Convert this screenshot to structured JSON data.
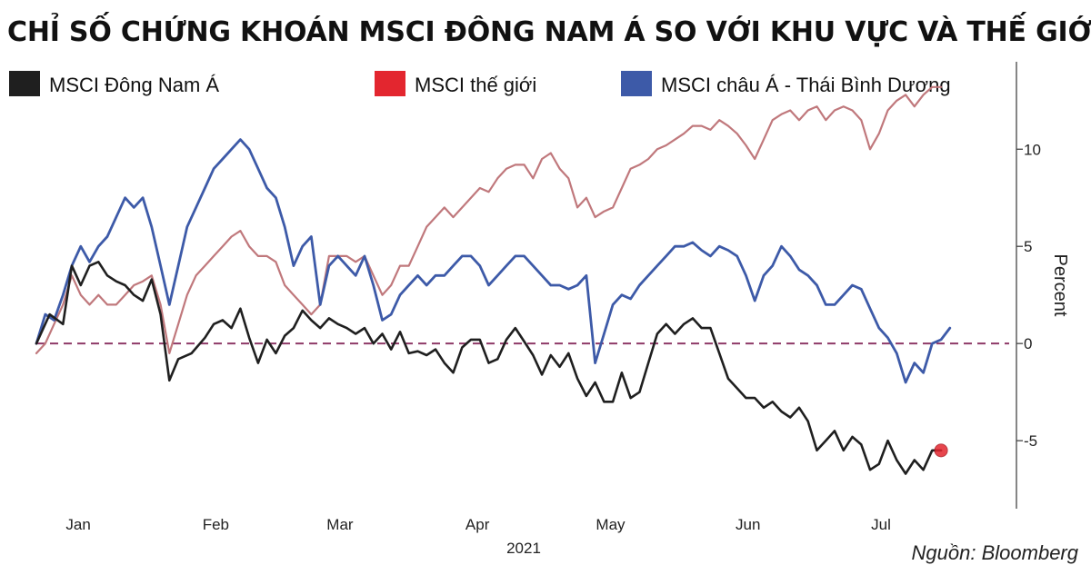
{
  "title": "CHỈ SỐ CHỨNG KHOÁN MSCI ĐÔNG NAM Á SO VỚI KHU VỰC VÀ THẾ GIỚI",
  "source": "Nguồn: Bloomberg",
  "colors": {
    "series_sea": "#1f1f1f",
    "series_world": "#c0787c",
    "series_apac": "#3d5aa8",
    "legend_world": "#e3262f",
    "zero_line": "#8e3a68",
    "end_marker": "#e3262f",
    "axis": "#444444"
  },
  "chart_data": {
    "type": "line",
    "title": "CHỈ SỐ CHỨNG KHOÁN MSCI ĐÔNG NAM Á SO VỚI KHU VỰC VÀ THẾ GIỚI",
    "xlabel": "2021",
    "ylabel": "Percent",
    "x_ticks": [
      "Jan",
      "Feb",
      "Mar",
      "Apr",
      "May",
      "Jun",
      "Jul"
    ],
    "x_tick_days": [
      7,
      38,
      66,
      97,
      127,
      158,
      188
    ],
    "xlim": [
      0,
      221
    ],
    "ylim": [
      -8.5,
      14.5
    ],
    "y_ticks": [
      10,
      5,
      0,
      -5
    ],
    "y_tick_labels": [
      "10",
      "5",
      "0",
      "-5"
    ],
    "reference_line": 0,
    "legend_position": "top",
    "series": [
      {
        "name": "MSCI Đông Nam Á",
        "points": [
          [
            0,
            0
          ],
          [
            3,
            1.5
          ],
          [
            6,
            1
          ],
          [
            8,
            4
          ],
          [
            10,
            3
          ],
          [
            12,
            4
          ],
          [
            14,
            4.2
          ],
          [
            16,
            3.5
          ],
          [
            18,
            3.2
          ],
          [
            20,
            3
          ],
          [
            22,
            2.5
          ],
          [
            24,
            2.2
          ],
          [
            26,
            3.3
          ],
          [
            28,
            1.5
          ],
          [
            30,
            -1.9
          ],
          [
            32,
            -0.8
          ],
          [
            35,
            -0.5
          ],
          [
            38,
            0.3
          ],
          [
            40,
            1
          ],
          [
            42,
            1.2
          ],
          [
            44,
            0.8
          ],
          [
            46,
            1.8
          ],
          [
            48,
            0.3
          ],
          [
            50,
            -1
          ],
          [
            52,
            0.2
          ],
          [
            54,
            -0.5
          ],
          [
            56,
            0.4
          ],
          [
            58,
            0.8
          ],
          [
            60,
            1.7
          ],
          [
            62,
            1.2
          ],
          [
            64,
            0.8
          ],
          [
            66,
            1.3
          ],
          [
            68,
            1
          ],
          [
            70,
            0.8
          ],
          [
            72,
            0.5
          ],
          [
            74,
            0.8
          ],
          [
            76,
            0
          ],
          [
            78,
            0.5
          ],
          [
            80,
            -0.3
          ],
          [
            82,
            0.6
          ],
          [
            84,
            -0.5
          ],
          [
            86,
            -0.4
          ],
          [
            88,
            -0.6
          ],
          [
            90,
            -0.3
          ],
          [
            92,
            -1
          ],
          [
            94,
            -1.5
          ],
          [
            96,
            -0.2
          ],
          [
            98,
            0.2
          ],
          [
            100,
            0.2
          ],
          [
            102,
            -1
          ],
          [
            104,
            -0.8
          ],
          [
            106,
            0.2
          ],
          [
            108,
            0.8
          ],
          [
            110,
            0.1
          ],
          [
            112,
            -0.6
          ],
          [
            114,
            -1.6
          ],
          [
            116,
            -0.6
          ],
          [
            118,
            -1.2
          ],
          [
            120,
            -0.5
          ],
          [
            122,
            -1.8
          ],
          [
            124,
            -2.7
          ],
          [
            126,
            -2
          ],
          [
            128,
            -3
          ],
          [
            130,
            -3
          ],
          [
            132,
            -1.5
          ],
          [
            134,
            -2.8
          ],
          [
            136,
            -2.5
          ],
          [
            138,
            -1
          ],
          [
            140,
            0.5
          ],
          [
            142,
            1
          ],
          [
            144,
            0.5
          ],
          [
            146,
            1
          ],
          [
            148,
            1.3
          ],
          [
            150,
            0.8
          ],
          [
            152,
            0.8
          ],
          [
            154,
            -0.5
          ],
          [
            156,
            -1.8
          ],
          [
            158,
            -2.3
          ],
          [
            160,
            -2.8
          ],
          [
            162,
            -2.8
          ],
          [
            164,
            -3.3
          ],
          [
            166,
            -3
          ],
          [
            168,
            -3.5
          ],
          [
            170,
            -3.8
          ],
          [
            172,
            -3.3
          ],
          [
            174,
            -4
          ],
          [
            176,
            -5.5
          ],
          [
            178,
            -5
          ],
          [
            180,
            -4.5
          ],
          [
            182,
            -5.5
          ],
          [
            184,
            -4.8
          ],
          [
            186,
            -5.2
          ],
          [
            188,
            -6.5
          ],
          [
            190,
            -6.2
          ],
          [
            192,
            -5
          ],
          [
            194,
            -6
          ],
          [
            196,
            -6.7
          ],
          [
            198,
            -6
          ],
          [
            200,
            -6.5
          ],
          [
            202,
            -5.5
          ],
          [
            204,
            -5.5
          ]
        ]
      },
      {
        "name": "MSCI thế giới",
        "points": [
          [
            0,
            -0.5
          ],
          [
            2,
            0
          ],
          [
            4,
            1
          ],
          [
            6,
            2
          ],
          [
            8,
            3.5
          ],
          [
            10,
            2.5
          ],
          [
            12,
            2
          ],
          [
            14,
            2.5
          ],
          [
            16,
            2
          ],
          [
            18,
            2
          ],
          [
            20,
            2.5
          ],
          [
            22,
            3
          ],
          [
            24,
            3.2
          ],
          [
            26,
            3.5
          ],
          [
            28,
            2
          ],
          [
            30,
            -0.5
          ],
          [
            32,
            1
          ],
          [
            34,
            2.5
          ],
          [
            36,
            3.5
          ],
          [
            38,
            4
          ],
          [
            40,
            4.5
          ],
          [
            42,
            5
          ],
          [
            44,
            5.5
          ],
          [
            46,
            5.8
          ],
          [
            48,
            5
          ],
          [
            50,
            4.5
          ],
          [
            52,
            4.5
          ],
          [
            54,
            4.2
          ],
          [
            56,
            3
          ],
          [
            58,
            2.5
          ],
          [
            60,
            2
          ],
          [
            62,
            1.5
          ],
          [
            64,
            2
          ],
          [
            66,
            4.5
          ],
          [
            68,
            4.5
          ],
          [
            70,
            4.5
          ],
          [
            72,
            4.2
          ],
          [
            74,
            4.5
          ],
          [
            76,
            3.5
          ],
          [
            78,
            2.5
          ],
          [
            80,
            3
          ],
          [
            82,
            4
          ],
          [
            84,
            4
          ],
          [
            86,
            5
          ],
          [
            88,
            6
          ],
          [
            90,
            6.5
          ],
          [
            92,
            7
          ],
          [
            94,
            6.5
          ],
          [
            96,
            7
          ],
          [
            98,
            7.5
          ],
          [
            100,
            8
          ],
          [
            102,
            7.8
          ],
          [
            104,
            8.5
          ],
          [
            106,
            9
          ],
          [
            108,
            9.2
          ],
          [
            110,
            9.2
          ],
          [
            112,
            8.5
          ],
          [
            114,
            9.5
          ],
          [
            116,
            9.8
          ],
          [
            118,
            9
          ],
          [
            120,
            8.5
          ],
          [
            122,
            7
          ],
          [
            124,
            7.5
          ],
          [
            126,
            6.5
          ],
          [
            128,
            6.8
          ],
          [
            130,
            7
          ],
          [
            132,
            8
          ],
          [
            134,
            9
          ],
          [
            136,
            9.2
          ],
          [
            138,
            9.5
          ],
          [
            140,
            10
          ],
          [
            142,
            10.2
          ],
          [
            144,
            10.5
          ],
          [
            146,
            10.8
          ],
          [
            148,
            11.2
          ],
          [
            150,
            11.2
          ],
          [
            152,
            11
          ],
          [
            154,
            11.5
          ],
          [
            156,
            11.2
          ],
          [
            158,
            10.8
          ],
          [
            160,
            10.2
          ],
          [
            162,
            9.5
          ],
          [
            164,
            10.5
          ],
          [
            166,
            11.5
          ],
          [
            168,
            11.8
          ],
          [
            170,
            12
          ],
          [
            172,
            11.5
          ],
          [
            174,
            12
          ],
          [
            176,
            12.2
          ],
          [
            178,
            11.5
          ],
          [
            180,
            12
          ],
          [
            182,
            12.2
          ],
          [
            184,
            12
          ],
          [
            186,
            11.5
          ],
          [
            188,
            10
          ],
          [
            190,
            10.8
          ],
          [
            192,
            12
          ],
          [
            194,
            12.5
          ],
          [
            196,
            12.8
          ],
          [
            198,
            12.2
          ],
          [
            200,
            12.8
          ],
          [
            202,
            13.2
          ],
          [
            204,
            13.2
          ]
        ]
      },
      {
        "name": "MSCI châu Á - Thái Bình Dương",
        "points": [
          [
            0,
            0
          ],
          [
            2,
            1.5
          ],
          [
            4,
            1.2
          ],
          [
            6,
            2.5
          ],
          [
            8,
            4
          ],
          [
            10,
            5
          ],
          [
            12,
            4.2
          ],
          [
            14,
            5
          ],
          [
            16,
            5.5
          ],
          [
            18,
            6.5
          ],
          [
            20,
            7.5
          ],
          [
            22,
            7
          ],
          [
            24,
            7.5
          ],
          [
            26,
            6
          ],
          [
            28,
            4
          ],
          [
            30,
            2
          ],
          [
            32,
            4
          ],
          [
            34,
            6
          ],
          [
            36,
            7
          ],
          [
            38,
            8
          ],
          [
            40,
            9
          ],
          [
            42,
            9.5
          ],
          [
            44,
            10
          ],
          [
            46,
            10.5
          ],
          [
            48,
            10
          ],
          [
            50,
            9
          ],
          [
            52,
            8
          ],
          [
            54,
            7.5
          ],
          [
            56,
            6
          ],
          [
            58,
            4
          ],
          [
            60,
            5
          ],
          [
            62,
            5.5
          ],
          [
            64,
            2
          ],
          [
            66,
            4
          ],
          [
            68,
            4.5
          ],
          [
            70,
            4
          ],
          [
            72,
            3.5
          ],
          [
            74,
            4.5
          ],
          [
            76,
            3
          ],
          [
            78,
            1.2
          ],
          [
            80,
            1.5
          ],
          [
            82,
            2.5
          ],
          [
            84,
            3
          ],
          [
            86,
            3.5
          ],
          [
            88,
            3
          ],
          [
            90,
            3.5
          ],
          [
            92,
            3.5
          ],
          [
            94,
            4
          ],
          [
            96,
            4.5
          ],
          [
            98,
            4.5
          ],
          [
            100,
            4
          ],
          [
            102,
            3
          ],
          [
            104,
            3.5
          ],
          [
            106,
            4
          ],
          [
            108,
            4.5
          ],
          [
            110,
            4.5
          ],
          [
            112,
            4
          ],
          [
            114,
            3.5
          ],
          [
            116,
            3
          ],
          [
            118,
            3
          ],
          [
            120,
            2.8
          ],
          [
            122,
            3
          ],
          [
            124,
            3.5
          ],
          [
            126,
            -1
          ],
          [
            128,
            0.5
          ],
          [
            130,
            2
          ],
          [
            132,
            2.5
          ],
          [
            134,
            2.3
          ],
          [
            136,
            3
          ],
          [
            138,
            3.5
          ],
          [
            140,
            4
          ],
          [
            142,
            4.5
          ],
          [
            144,
            5
          ],
          [
            146,
            5
          ],
          [
            148,
            5.2
          ],
          [
            150,
            4.8
          ],
          [
            152,
            4.5
          ],
          [
            154,
            5
          ],
          [
            156,
            4.8
          ],
          [
            158,
            4.5
          ],
          [
            160,
            3.5
          ],
          [
            162,
            2.2
          ],
          [
            164,
            3.5
          ],
          [
            166,
            4
          ],
          [
            168,
            5
          ],
          [
            170,
            4.5
          ],
          [
            172,
            3.8
          ],
          [
            174,
            3.5
          ],
          [
            176,
            3
          ],
          [
            178,
            2
          ],
          [
            180,
            2
          ],
          [
            182,
            2.5
          ],
          [
            184,
            3
          ],
          [
            186,
            2.8
          ],
          [
            188,
            1.8
          ],
          [
            190,
            0.8
          ],
          [
            192,
            0.3
          ],
          [
            194,
            -0.5
          ],
          [
            196,
            -2
          ],
          [
            198,
            -1
          ],
          [
            200,
            -1.5
          ],
          [
            202,
            0
          ],
          [
            204,
            0.2
          ],
          [
            206,
            0.8
          ]
        ]
      }
    ],
    "end_marker": {
      "series": "MSCI Đông Nam Á",
      "x": 204,
      "y": -5.5
    }
  }
}
